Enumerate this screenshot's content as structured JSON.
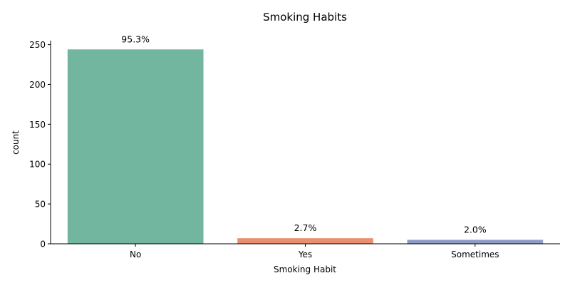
{
  "chart_data": {
    "type": "bar",
    "title": "Smoking Habits",
    "xlabel": "Smoking Habit",
    "ylabel": "count",
    "categories": [
      "No",
      "Yes",
      "Sometimes"
    ],
    "values": [
      244,
      7,
      5
    ],
    "data_labels": [
      "95.3%",
      "2.7%",
      "2.0%"
    ],
    "colors": [
      "#73b6a0",
      "#e9916e",
      "#8d9cc6"
    ],
    "ylim": [
      0,
      255
    ],
    "yticks": [
      0,
      50,
      100,
      150,
      200,
      250
    ],
    "grid": false,
    "legend": "none"
  }
}
